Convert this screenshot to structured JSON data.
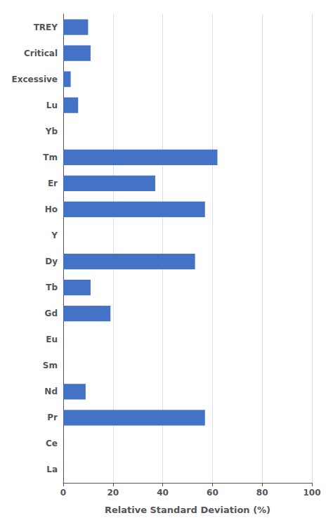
{
  "chart_data": {
    "type": "bar",
    "orientation": "horizontal",
    "categories": [
      "TREY",
      "Critical",
      "Excessive",
      "Lu",
      "Yb",
      "Tm",
      "Er",
      "Ho",
      "Y",
      "Dy",
      "Tb",
      "Gd",
      "Eu",
      "Sm",
      "Nd",
      "Pr",
      "Ce",
      "La"
    ],
    "values": [
      10,
      11,
      3,
      6,
      0,
      62,
      37,
      57,
      0,
      53,
      11,
      19,
      0,
      0,
      9,
      57,
      0,
      0
    ],
    "color": "#4472C4",
    "xlabel": "Relative Standard Deviation (%)",
    "xlim": [
      0,
      100
    ],
    "xticks": [
      0,
      20,
      40,
      60,
      80,
      100
    ],
    "grid": true
  }
}
